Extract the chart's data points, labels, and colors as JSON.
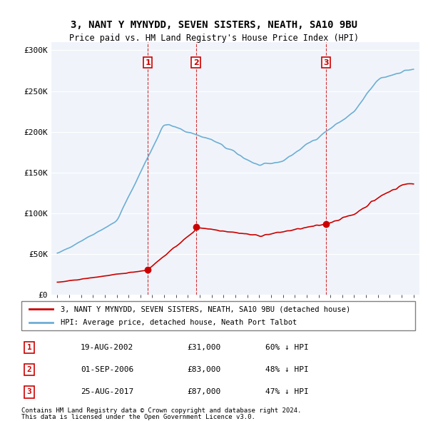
{
  "title": "3, NANT Y MYNYDD, SEVEN SISTERS, NEATH, SA10 9BU",
  "subtitle": "Price paid vs. HM Land Registry's House Price Index (HPI)",
  "hpi_label": "HPI: Average price, detached house, Neath Port Talbot",
  "property_label": "3, NANT Y MYNYDD, SEVEN SISTERS, NEATH, SA10 9BU (detached house)",
  "hpi_color": "#6daed4",
  "property_color": "#cc0000",
  "sale_color": "#cc0000",
  "vline_color": "#cc0000",
  "background_color": "#f0f4fa",
  "plot_bg": "#f0f4fa",
  "ylim": [
    0,
    310000
  ],
  "yticks": [
    0,
    50000,
    100000,
    150000,
    200000,
    250000,
    300000
  ],
  "ytick_labels": [
    "£0",
    "£50K",
    "£100K",
    "£150K",
    "£200K",
    "£250K",
    "£300K"
  ],
  "x_start_year": 1995,
  "x_end_year": 2025,
  "sales": [
    {
      "date_str": "19-AUG-2002",
      "year": 2002.63,
      "price": 31000,
      "label": "1",
      "pct": "60%",
      "dir": "↓"
    },
    {
      "date_str": "01-SEP-2006",
      "year": 2006.67,
      "price": 83000,
      "label": "2",
      "pct": "48%",
      "dir": "↓"
    },
    {
      "date_str": "25-AUG-2017",
      "year": 2017.65,
      "price": 87000,
      "label": "3",
      "pct": "47%",
      "dir": "↓"
    }
  ],
  "footer_line1": "Contains HM Land Registry data © Crown copyright and database right 2024.",
  "footer_line2": "This data is licensed under the Open Government Licence v3.0."
}
